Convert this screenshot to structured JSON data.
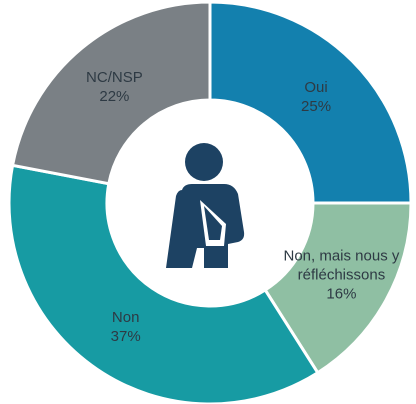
{
  "chart_data": {
    "type": "donut",
    "categories": [
      "Oui",
      "Non, mais nous y réfléchissons",
      "Non",
      "NC/NSP"
    ],
    "values": [
      25,
      16,
      37,
      22
    ],
    "value_labels": [
      "25%",
      "16%",
      "37%",
      "22%"
    ],
    "colors": [
      "#1380ae",
      "#8fbfa3",
      "#179ba3",
      "#7a8085"
    ]
  }
}
